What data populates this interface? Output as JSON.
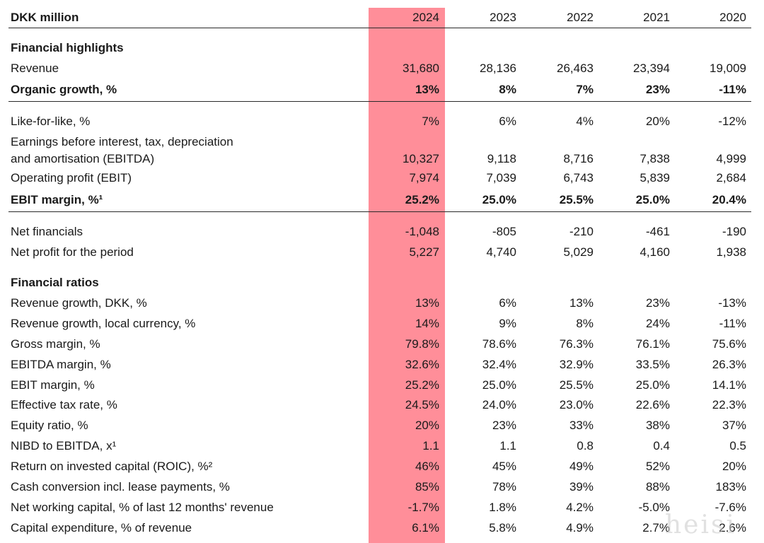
{
  "header": {
    "unit_label": "DKK million",
    "years": [
      "2024",
      "2023",
      "2022",
      "2021",
      "2020"
    ]
  },
  "sections": {
    "financial_highlights": "Financial highlights",
    "financial_ratios": "Financial ratios"
  },
  "rows": {
    "revenue": {
      "label": "Revenue",
      "values": [
        "31,680",
        "28,136",
        "26,463",
        "23,394",
        "19,009"
      ]
    },
    "organic_growth": {
      "label": "Organic growth, %",
      "values": [
        "13%",
        "8%",
        "7%",
        "23%",
        "-11%"
      ]
    },
    "like_for_like": {
      "label": "Like-for-like, %",
      "values": [
        "7%",
        "6%",
        "4%",
        "20%",
        "-12%"
      ]
    },
    "ebitda": {
      "label_line1": "Earnings before interest, tax, depreciation",
      "label_line2": "and amortisation (EBITDA)",
      "values": [
        "10,327",
        "9,118",
        "8,716",
        "7,838",
        "4,999"
      ]
    },
    "ebit": {
      "label": "Operating profit (EBIT)",
      "values": [
        "7,974",
        "7,039",
        "6,743",
        "5,839",
        "2,684"
      ]
    },
    "ebit_margin_bold": {
      "label": "EBIT margin, %¹",
      "values": [
        "25.2%",
        "25.0%",
        "25.5%",
        "25.0%",
        "20.4%"
      ]
    },
    "net_financials": {
      "label": "Net financials",
      "values": [
        "-1,048",
        "-805",
        "-210",
        "-461",
        "-190"
      ]
    },
    "net_profit": {
      "label": "Net profit for the period",
      "values": [
        "5,227",
        "4,740",
        "5,029",
        "4,160",
        "1,938"
      ]
    },
    "revenue_growth_dkk": {
      "label": "Revenue growth, DKK, %",
      "values": [
        "13%",
        "6%",
        "13%",
        "23%",
        "-13%"
      ]
    },
    "revenue_growth_local": {
      "label": "Revenue growth, local currency, %",
      "values": [
        "14%",
        "9%",
        "8%",
        "24%",
        "-11%"
      ]
    },
    "gross_margin": {
      "label": "Gross margin, %",
      "values": [
        "79.8%",
        "78.6%",
        "76.3%",
        "76.1%",
        "75.6%"
      ]
    },
    "ebitda_margin": {
      "label": "EBITDA margin, %",
      "values": [
        "32.6%",
        "32.4%",
        "32.9%",
        "33.5%",
        "26.3%"
      ]
    },
    "ebit_margin": {
      "label": "EBIT margin, %",
      "values": [
        "25.2%",
        "25.0%",
        "25.5%",
        "25.0%",
        "14.1%"
      ]
    },
    "effective_tax_rate": {
      "label": "Effective tax rate, %",
      "values": [
        "24.5%",
        "24.0%",
        "23.0%",
        "22.6%",
        "22.3%"
      ]
    },
    "equity_ratio": {
      "label": "Equity ratio, %",
      "values": [
        "20%",
        "23%",
        "33%",
        "38%",
        "37%"
      ]
    },
    "nibd_to_ebitda": {
      "label": "NIBD to EBITDA, x¹",
      "values": [
        "1.1",
        "1.1",
        "0.8",
        "0.4",
        "0.5"
      ]
    },
    "roic": {
      "label": "Return on invested capital (ROIC), %²",
      "values": [
        "46%",
        "45%",
        "49%",
        "52%",
        "20%"
      ]
    },
    "cash_conversion": {
      "label": "Cash conversion incl. lease payments, %",
      "values": [
        "85%",
        "78%",
        "39%",
        "88%",
        "183%"
      ]
    },
    "net_working_capital": {
      "label": "Net working capital, % of last 12 months' revenue",
      "values": [
        "-1.7%",
        "1.8%",
        "4.2%",
        "-5.0%",
        "-7.6%"
      ]
    },
    "capex": {
      "label": "Capital expenditure, % of revenue",
      "values": [
        "6.1%",
        "5.8%",
        "4.9%",
        "2.7%",
        "2.6%"
      ]
    }
  },
  "colors": {
    "highlight_column": "#ff8e99",
    "text": "#1a1a1a",
    "rule": "#2a2a2a"
  },
  "watermark": "heisi"
}
